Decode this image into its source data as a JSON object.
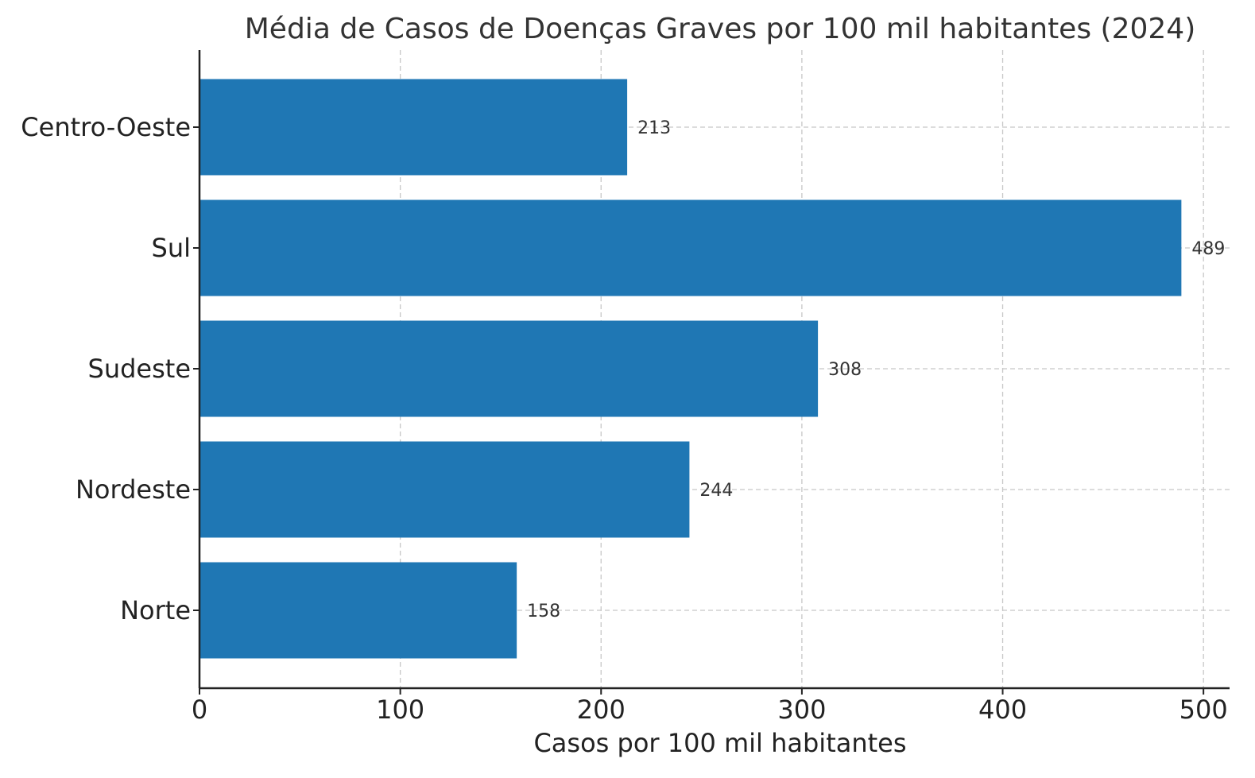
{
  "chart_data": {
    "type": "bar",
    "orientation": "horizontal",
    "title": "Média de Casos de Doenças Graves por 100 mil habitantes (2024)",
    "xlabel": "Casos por 100 mil habitantes",
    "ylabel": "",
    "categories": [
      "Centro-Oeste",
      "Sul",
      "Sudeste",
      "Nordeste",
      "Norte"
    ],
    "values": [
      213,
      489,
      308,
      244,
      158
    ],
    "data_labels": [
      "213",
      "489",
      "308",
      "244",
      "158"
    ],
    "xlim": [
      0,
      513
    ],
    "xticks": [
      0,
      100,
      200,
      300,
      400,
      500
    ],
    "xtick_labels": [
      "0",
      "100",
      "200",
      "300",
      "400",
      "500"
    ],
    "grid": true,
    "bar_color": "#1f77b4"
  }
}
